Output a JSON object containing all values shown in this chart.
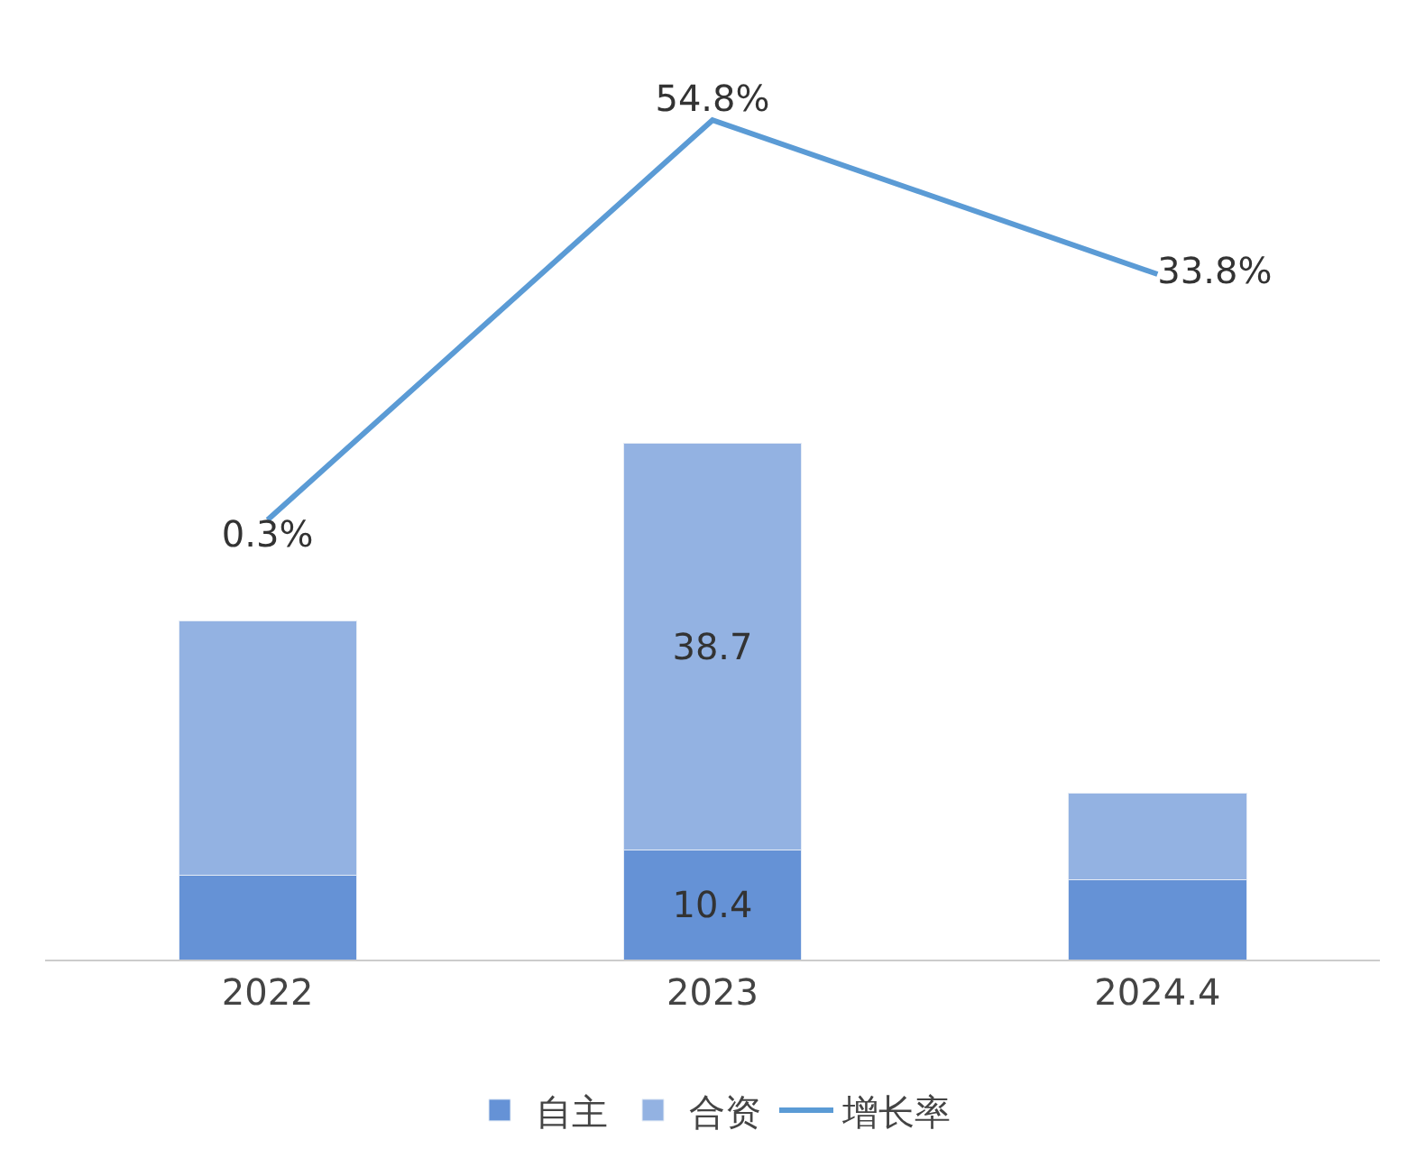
{
  "chart_data": {
    "type": "bar",
    "stacked": true,
    "categories": [
      "2022",
      "2023",
      "2024.4"
    ],
    "series": [
      {
        "name": "自主",
        "color": "#6592d6",
        "values": [
          8.0,
          10.4,
          7.6
        ],
        "value_labels": [
          null,
          "10.4",
          null
        ]
      },
      {
        "name": "合资",
        "color": "#93b2e2",
        "values": [
          24.2,
          38.7,
          8.2
        ],
        "value_labels": [
          null,
          "38.7",
          null
        ]
      },
      {
        "name": "增长率",
        "type": "line",
        "axis": "y2",
        "color": "#5b9bd5",
        "values": [
          0.3,
          54.8,
          33.8
        ],
        "value_labels": [
          "0.3%",
          "54.8%",
          "33.8%"
        ]
      }
    ],
    "legend": "bottom"
  }
}
